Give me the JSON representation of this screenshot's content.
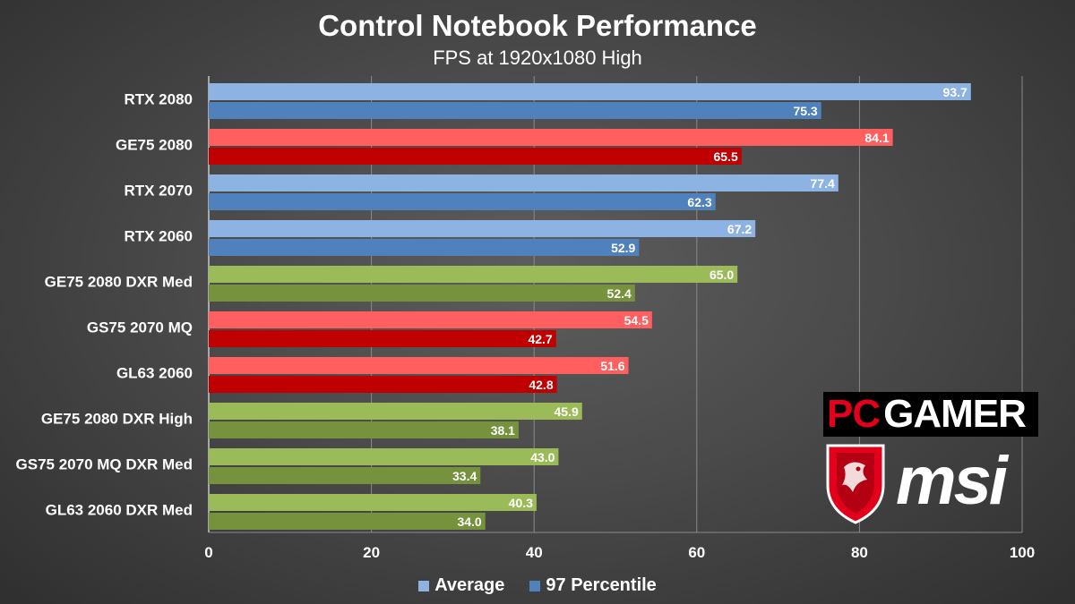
{
  "chart_data": {
    "type": "bar",
    "orientation": "horizontal",
    "title": "Control Notebook Performance",
    "subtitle": "FPS at 1920x1080 High",
    "categories": [
      "RTX 2080",
      "GE75 2080",
      "RTX 2070",
      "RTX 2060",
      "GE75 2080 DXR Med",
      "GS75 2070 MQ",
      "GL63 2060",
      "GE75 2080 DXR High",
      "GS75 2070 MQ DXR Med",
      "GL63 2060 DXR Med"
    ],
    "series": [
      {
        "name": "Average",
        "values": [
          93.7,
          84.1,
          77.4,
          67.2,
          65.0,
          54.5,
          51.6,
          45.9,
          43.0,
          40.3
        ],
        "labels": [
          "93.7",
          "84.1",
          "77.4",
          "67.2",
          "65.0",
          "54.5",
          "51.6",
          "45.9",
          "43.0",
          "40.3"
        ]
      },
      {
        "name": "97 Percentile",
        "values": [
          75.3,
          65.5,
          62.3,
          52.9,
          52.4,
          42.7,
          42.8,
          38.1,
          33.4,
          34.0
        ],
        "labels": [
          "75.3",
          "65.5",
          "62.3",
          "52.9",
          "52.4",
          "42.7",
          "42.8",
          "38.1",
          "33.4",
          "34.0"
        ]
      }
    ],
    "group_colors": [
      "blue",
      "red",
      "blue",
      "blue",
      "green",
      "red",
      "red",
      "green",
      "green",
      "green"
    ],
    "colors": {
      "blue": {
        "average": "#8db3e2",
        "percentile": "#4f81bd"
      },
      "red": {
        "average": "#ff5f5f",
        "percentile": "#c00000"
      },
      "green": {
        "average": "#9bbb59",
        "percentile": "#76923c"
      }
    },
    "xlim": [
      0,
      100
    ],
    "x_ticks": [
      "0",
      "20",
      "40",
      "60",
      "80",
      "100"
    ],
    "x_tick_values": [
      0,
      20,
      40,
      60,
      80,
      100
    ],
    "grid": true,
    "legend": {
      "placement": "bottom",
      "items": [
        "Average",
        "97 Percentile"
      ]
    }
  },
  "logos": {
    "publication": "PC GAMER",
    "publication_parts": [
      "PC",
      "GAMER"
    ],
    "sponsor": "msi"
  }
}
